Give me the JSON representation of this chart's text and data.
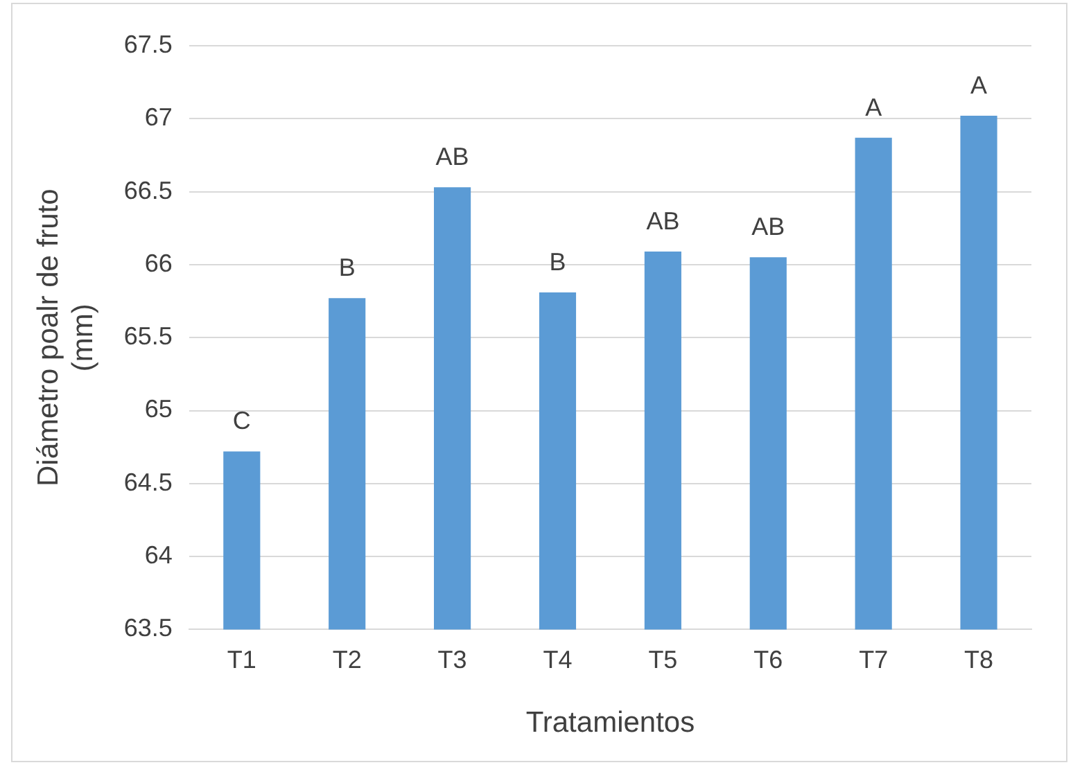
{
  "chart_data": {
    "type": "bar",
    "xlabel": "Tratamientos",
    "ylabel": "Diámetro poalr de fruto (mm)",
    "categories": [
      "T1",
      "T2",
      "T3",
      "T4",
      "T5",
      "T6",
      "T7",
      "T8"
    ],
    "values": [
      64.72,
      65.77,
      66.53,
      65.81,
      66.09,
      66.05,
      66.87,
      67.02
    ],
    "color": "#5b9bd5",
    "ylim": [
      63.5,
      67.5
    ],
    "yticks": [
      63.5,
      64,
      64.5,
      65,
      65.5,
      66,
      66.5,
      67,
      67.5
    ],
    "grid": "y",
    "annotations": [
      {
        "text": "C",
        "x": "T1",
        "y": 64.72
      },
      {
        "text": "B",
        "x": "T2",
        "y": 65.77
      },
      {
        "text": "AB",
        "x": "T3",
        "y": 66.53
      },
      {
        "text": "B",
        "x": "T4",
        "y": 65.81
      },
      {
        "text": "AB",
        "x": "T5",
        "y": 66.09
      },
      {
        "text": "AB",
        "x": "T6",
        "y": 66.05
      },
      {
        "text": "A",
        "x": "T7",
        "y": 66.87
      },
      {
        "text": "A",
        "x": "T8",
        "y": 67.02
      }
    ]
  }
}
